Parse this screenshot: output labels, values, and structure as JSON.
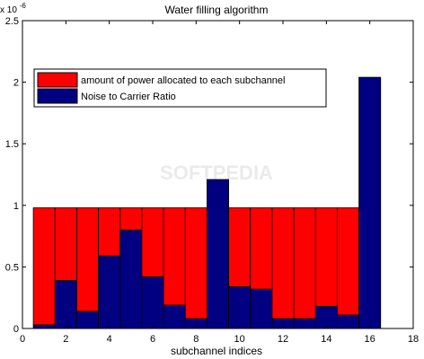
{
  "chart_data": {
    "type": "bar",
    "title": "Water filling algorithm",
    "xlabel": "subchannel indices",
    "ylabel": "",
    "y_exponent_label": "x 10",
    "y_exponent_power": "-6",
    "xlim": [
      0,
      18
    ],
    "ylim": [
      0,
      2.5e-06
    ],
    "x_ticks": [
      0,
      2,
      4,
      6,
      8,
      10,
      12,
      14,
      16,
      18
    ],
    "x_tick_labels": [
      "0",
      "2",
      "4",
      "6",
      "8",
      "10",
      "12",
      "14",
      "16",
      "18"
    ],
    "y_ticks": [
      0,
      5e-07,
      1e-06,
      1.5e-06,
      2e-06,
      2.5e-06
    ],
    "y_tick_labels": [
      "0",
      "0.5",
      "1",
      "1.5",
      "2",
      "2.5"
    ],
    "grid": false,
    "stacked": true,
    "legend_position": "top-left",
    "categories": [
      1,
      2,
      3,
      4,
      5,
      6,
      7,
      8,
      9,
      10,
      11,
      12,
      13,
      14,
      15,
      16
    ],
    "series": [
      {
        "name": "Noise to Carrier Ratio",
        "color": "#000080",
        "values": [
          3e-08,
          3.9e-07,
          1.4e-07,
          5.9e-07,
          8e-07,
          4.2e-07,
          1.9e-07,
          8e-08,
          1.21e-06,
          3.4e-07,
          3.2e-07,
          8e-08,
          8e-08,
          1.8e-07,
          1.1e-07,
          2.04e-06
        ]
      },
      {
        "name": "amount of power allocated to each subchannel",
        "color": "#ff0000",
        "values": [
          9.5e-07,
          5.9e-07,
          8.4e-07,
          3.9e-07,
          1.8e-07,
          5.6e-07,
          7.9e-07,
          9e-07,
          0,
          6.4e-07,
          6.6e-07,
          9e-07,
          9e-07,
          8e-07,
          8.7e-07,
          0
        ]
      }
    ],
    "legend_order": [
      "amount of power allocated to each subchannel",
      "Noise to Carrier Ratio"
    ]
  },
  "watermark": "SOFTPEDIA"
}
